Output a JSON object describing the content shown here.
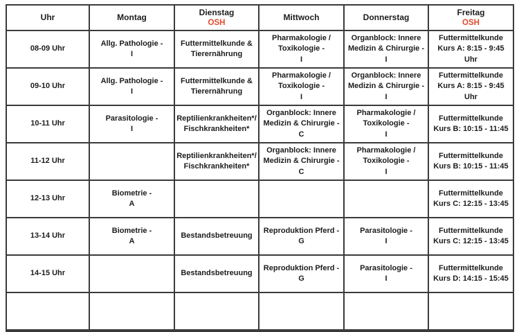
{
  "colors": {
    "osh": "#e2492b",
    "border": "#3a3a3a",
    "text": "#1c1c1c"
  },
  "table": {
    "header": [
      {
        "label": "Uhr",
        "tag": ""
      },
      {
        "label": "Montag",
        "tag": ""
      },
      {
        "label": "Dienstag",
        "tag": "OSH"
      },
      {
        "label": "Mittwoch",
        "tag": ""
      },
      {
        "label": "Donnerstag",
        "tag": ""
      },
      {
        "label": "Freitag",
        "tag": "OSH"
      }
    ],
    "rows": [
      {
        "time": "08-09 Uhr",
        "cells": [
          "Allg. Pathologie -\nI",
          "Futtermittelkunde &\nTierernährung",
          "Pharmakologie /\nToxikologie -\nI",
          "Organblock: Innere\nMedizin & Chirurgie -\nI",
          "Futtermittelkunde\nKurs A: 8:15 - 9:45 Uhr"
        ]
      },
      {
        "time": "09-10 Uhr",
        "cells": [
          "Allg. Pathologie -\nI",
          "Futtermittelkunde &\nTierernährung",
          "Pharmakologie /\nToxikologie -\nI",
          "Organblock: Innere\nMedizin & Chirurgie -\nI",
          "Futtermittelkunde\nKurs A: 8:15 - 9:45 Uhr"
        ]
      },
      {
        "time": "10-11 Uhr",
        "cells": [
          "Parasitologie -\nI",
          "Reptilienkrankheiten*/\nFischkrankheiten*",
          "Organblock: Innere\nMedizin & Chirurgie -\nC",
          "Pharmakologie /\nToxikologie -\nI",
          "Futtermittelkunde\nKurs B: 10:15 - 11:45"
        ]
      },
      {
        "time": "11-12 Uhr",
        "cells": [
          "",
          "Reptilienkrankheiten*/\nFischkrankheiten*",
          "Organblock: Innere\nMedizin & Chirurgie -\nC",
          "Pharmakologie /\nToxikologie -\nI",
          "Futtermittelkunde\nKurs B: 10:15 - 11:45"
        ]
      },
      {
        "time": "12-13 Uhr",
        "cells": [
          "Biometrie -\nA",
          "",
          "",
          "",
          "Futtermittelkunde\nKurs C: 12:15 - 13:45"
        ]
      },
      {
        "time": "13-14 Uhr",
        "cells": [
          "Biometrie -\nA",
          "Bestandsbetreuung",
          "Reproduktion Pferd -\nG",
          "Parasitologie -\nI",
          "Futtermittelkunde\nKurs C: 12:15 - 13:45"
        ]
      },
      {
        "time": "14-15 Uhr",
        "cells": [
          "",
          "Bestandsbetreuung",
          "Reproduktion Pferd -\nG",
          "Parasitologie -\nI",
          "Futtermittelkunde\nKurs D: 14:15 - 15:45"
        ]
      },
      {
        "time": "",
        "cells": [
          "",
          "",
          "",
          "",
          ""
        ]
      }
    ]
  }
}
